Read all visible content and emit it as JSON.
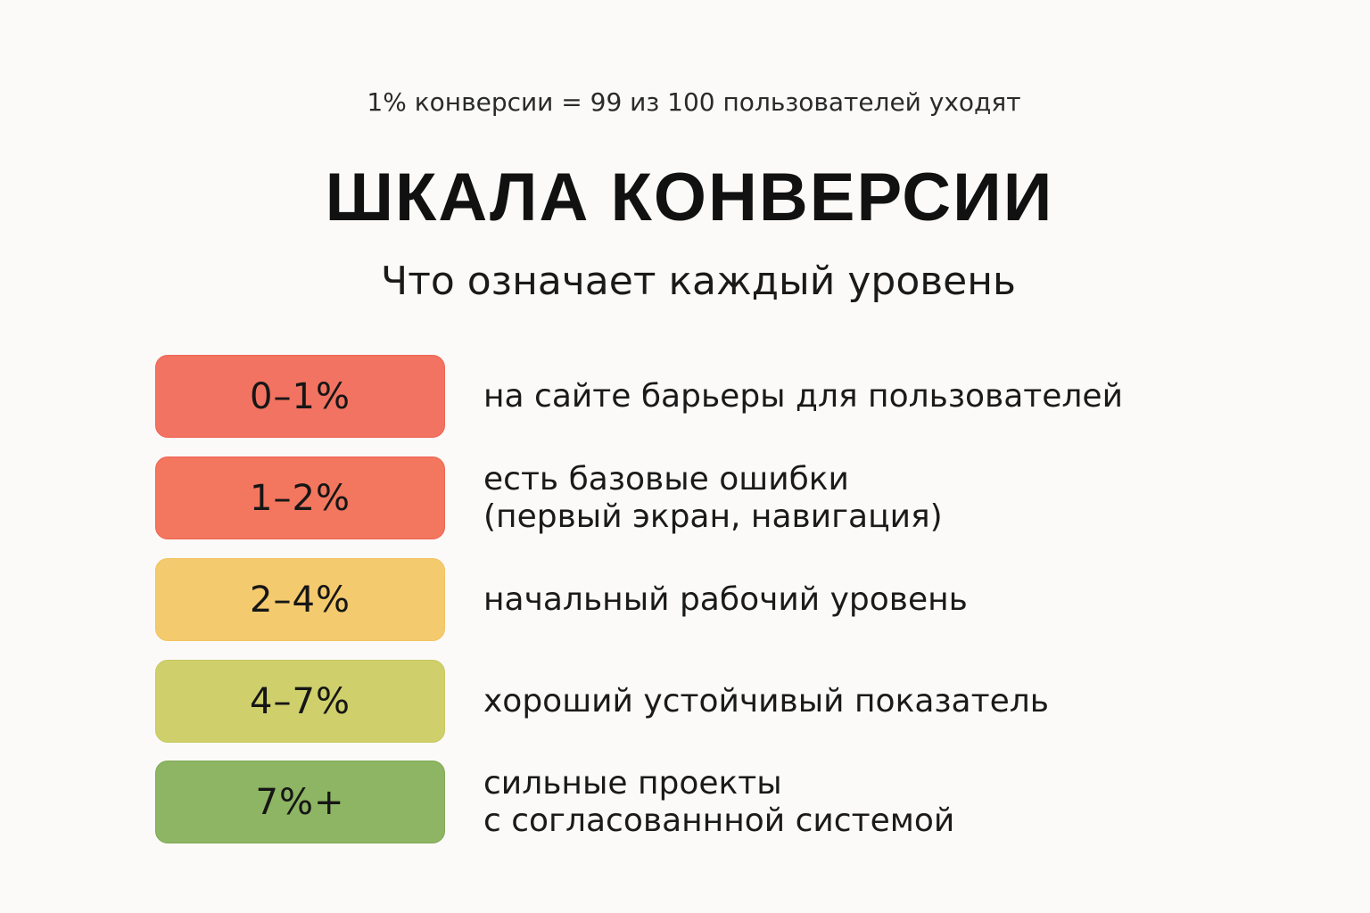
{
  "header": {
    "note": "1% конверсии = 99 из 100 пользователей уходят",
    "title": "ШКАЛА КОНВЕРСИИ",
    "subtitle": "Что означает каждый уровень"
  },
  "levels": [
    {
      "range": "0–1%",
      "color": "#f27361",
      "border": "#ee6553",
      "lines": [
        "на сайте барьеры для пользователей"
      ]
    },
    {
      "range": "1–2%",
      "color": "#f3765f",
      "border": "#ee6553",
      "lines": [
        "есть базовые ошибки",
        "(первый экран, навигация)"
      ]
    },
    {
      "range": "2–4%",
      "color": "#f4ca6e",
      "border": "#f2c25e",
      "lines": [
        "начальный рабочий уровень"
      ]
    },
    {
      "range": "4–7%",
      "color": "#cfd06c",
      "border": "#c6c95e",
      "lines": [
        "хороший устойчивый показатель"
      ]
    },
    {
      "range": "7%+",
      "color": "#8db563",
      "border": "#7faa55",
      "lines": [
        "сильные проекты",
        "с согласованнной системой"
      ]
    }
  ]
}
